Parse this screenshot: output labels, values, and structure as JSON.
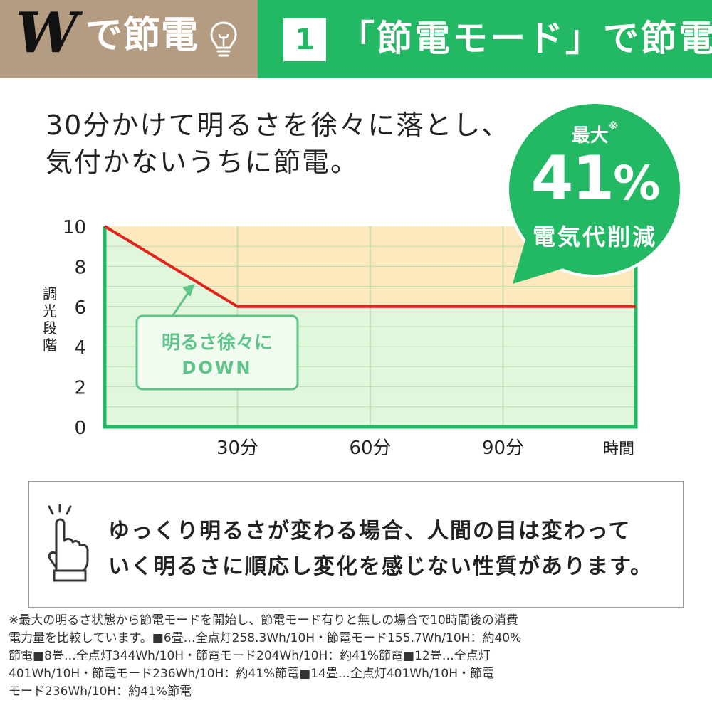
{
  "header": {
    "brand_w": "W",
    "brand_rest": "で節電",
    "section_number": "1",
    "section_title": "「節電モード」で節電",
    "colors": {
      "brand_bg": "#b39c82",
      "accent": "#23b864"
    }
  },
  "lead": {
    "line1": "30分かけて明るさを徐々に落とし、",
    "line2": "気付かないうちに節電。"
  },
  "badge": {
    "label": "最大",
    "mark": "※",
    "value": "41",
    "unit": "%",
    "caption": "電気代削減"
  },
  "chart_data": {
    "type": "line",
    "ylabel": "調光段階",
    "xlabel": "時間",
    "x_ticks": [
      {
        "value": 30,
        "label": "30分"
      },
      {
        "value": 60,
        "label": "60分"
      },
      {
        "value": 90,
        "label": "90分"
      }
    ],
    "y_ticks": [
      0,
      2,
      4,
      6,
      8,
      10
    ],
    "xlim": [
      0,
      120
    ],
    "ylim": [
      0,
      10
    ],
    "grid": true,
    "series": [
      {
        "x": [
          0,
          30,
          120
        ],
        "y": [
          10,
          6,
          6
        ],
        "color": "#e0231d"
      }
    ],
    "saved_region_color": "#fde9bd",
    "used_region_color": "#e1f7db",
    "annotation": {
      "line1": "明るさ徐々に",
      "line2": "DOWN",
      "at_x": 20,
      "at_y": 7.2
    }
  },
  "note": {
    "icon": "pointing-hand-icon",
    "line1": "ゆっくり明るさが変わる場合、人間の目は変わって",
    "line2": "いく明るさに順応し変化を感じない性質があります。"
  },
  "footnote": [
    "※最大の明るさ状態から節電モードを開始し、節電モード有りと無しの場合で10時間後の消費",
    "電力量を比較しています。■6畳…全点灯258.3Wh/10H・節電モード155.7Wh/10H：約40%",
    "節電■8畳…全点灯344Wh/10H・節電モード204Wh/10H：約41%節電■12畳…全点灯",
    "401Wh/10H・節電モード236Wh/10H：約41%節電■14畳…全点灯401Wh/10H・節電",
    "モード236Wh/10H：約41%節電"
  ]
}
